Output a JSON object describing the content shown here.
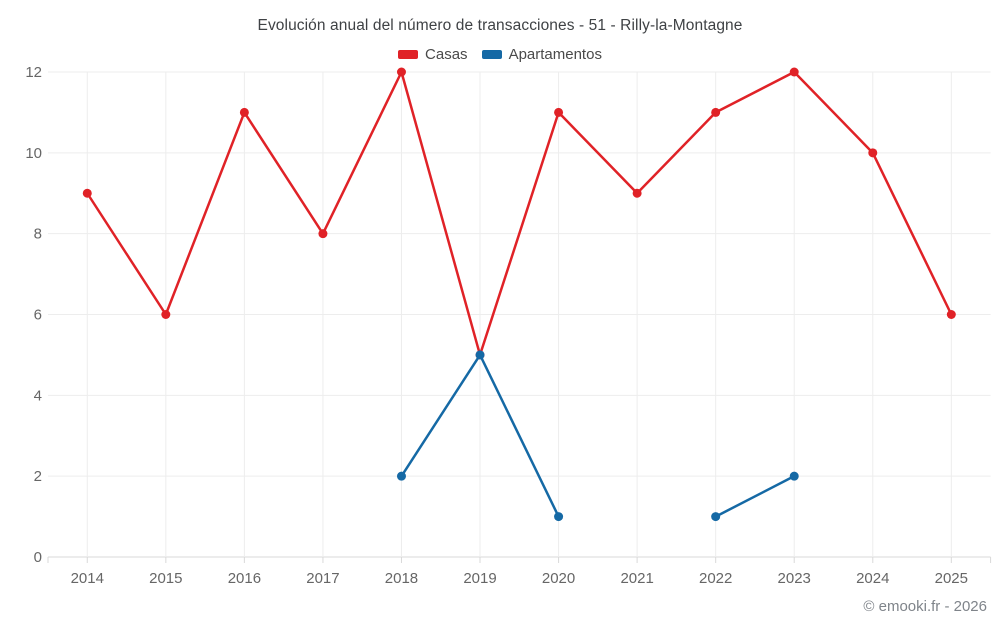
{
  "title": "Evolución anual del número de transacciones - 51 - Rilly-la-Montagne",
  "watermark": "© emooki.fr - 2026",
  "colors": {
    "casas": "#e02227",
    "apartamentos": "#1569a5",
    "grid": "#ededed",
    "axis": "#d9d9d9",
    "tick_label": "#666666",
    "title_text": "#3f4245",
    "legend_text": "#4a4a4a",
    "watermark_text": "#7f848a"
  },
  "chart_data": {
    "type": "line",
    "title": "Evolución anual del número de transacciones - 51 - Rilly-la-Montagne",
    "categories": [
      "2014",
      "2015",
      "2016",
      "2017",
      "2018",
      "2019",
      "2020",
      "2021",
      "2022",
      "2023",
      "2024",
      "2025"
    ],
    "series": [
      {
        "name": "Casas",
        "color": "#e02227",
        "values": [
          9,
          6,
          11,
          8,
          12,
          5,
          11,
          9,
          11,
          12,
          10,
          6
        ]
      },
      {
        "name": "Apartamentos",
        "color": "#1569a5",
        "values": [
          null,
          null,
          null,
          null,
          2,
          5,
          1,
          null,
          1,
          2,
          null,
          null
        ]
      }
    ],
    "xlabel": "",
    "ylabel": "",
    "ylim": [
      0,
      12
    ],
    "yticks": [
      0,
      2,
      4,
      6,
      8,
      10,
      12
    ],
    "grid": true,
    "legend_position": "top",
    "marker": "circle"
  }
}
